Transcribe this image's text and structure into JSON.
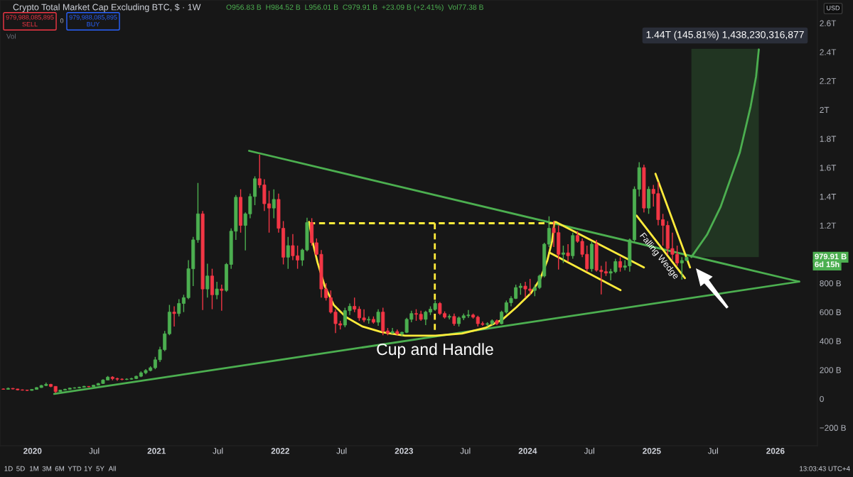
{
  "chart_data": {
    "type": "candlestick",
    "title": "Crypto Total Market Cap Excluding BTC, $ · 1W",
    "x": [
      "2019-10-07",
      "2019-10-21",
      "2019-11-04",
      "2019-11-18",
      "2019-12-02",
      "2019-12-16",
      "2019-12-30",
      "2020-01-13",
      "2020-01-27",
      "2020-02-10",
      "2020-02-24",
      "2020-03-09",
      "2020-03-23",
      "2020-04-06",
      "2020-04-20",
      "2020-05-04",
      "2020-05-18",
      "2020-06-01",
      "2020-06-15",
      "2020-06-29",
      "2020-07-13",
      "2020-07-27",
      "2020-08-10",
      "2020-08-24",
      "2020-09-07",
      "2020-09-21",
      "2020-10-05",
      "2020-10-19",
      "2020-11-02",
      "2020-11-16",
      "2020-11-30",
      "2020-12-14",
      "2020-12-28",
      "2021-01-11",
      "2021-01-25",
      "2021-02-08",
      "2021-02-22",
      "2021-03-08",
      "2021-03-22",
      "2021-04-05",
      "2021-04-19",
      "2021-05-03",
      "2021-05-17",
      "2021-05-31",
      "2021-06-14",
      "2021-06-28",
      "2021-07-12",
      "2021-07-26",
      "2021-08-09",
      "2021-08-23",
      "2021-09-06",
      "2021-09-20",
      "2021-10-04",
      "2021-10-18",
      "2021-11-01",
      "2021-11-15",
      "2021-11-29",
      "2021-12-13",
      "2021-12-27",
      "2022-01-10",
      "2022-01-24",
      "2022-02-07",
      "2022-02-21",
      "2022-03-07",
      "2022-03-21",
      "2022-04-04",
      "2022-04-18",
      "2022-05-02",
      "2022-05-16",
      "2022-05-30",
      "2022-06-13",
      "2022-06-27",
      "2022-07-11",
      "2022-07-25",
      "2022-08-08",
      "2022-08-22",
      "2022-09-05",
      "2022-09-19",
      "2022-10-03",
      "2022-10-17",
      "2022-10-31",
      "2022-11-14",
      "2022-11-28",
      "2022-12-12",
      "2022-12-26",
      "2023-01-09",
      "2023-01-23",
      "2023-02-06",
      "2023-02-20",
      "2023-03-06",
      "2023-03-20",
      "2023-04-03",
      "2023-04-17",
      "2023-05-01",
      "2023-05-15",
      "2023-05-29",
      "2023-06-12",
      "2023-06-26",
      "2023-07-10",
      "2023-07-24",
      "2023-08-07",
      "2023-08-21",
      "2023-09-04",
      "2023-09-18",
      "2023-10-02",
      "2023-10-16",
      "2023-10-30",
      "2023-11-13",
      "2023-11-27",
      "2023-12-11",
      "2023-12-25",
      "2024-01-08",
      "2024-01-22",
      "2024-02-05",
      "2024-02-19",
      "2024-03-04",
      "2024-03-18",
      "2024-04-01",
      "2024-04-15",
      "2024-04-29",
      "2024-05-13",
      "2024-05-27",
      "2024-06-10",
      "2024-06-24",
      "2024-07-08",
      "2024-07-22",
      "2024-08-05",
      "2024-08-19",
      "2024-09-02",
      "2024-09-16",
      "2024-09-30",
      "2024-10-14",
      "2024-10-28",
      "2024-11-11",
      "2024-11-25",
      "2024-12-09",
      "2024-12-23",
      "2025-01-06",
      "2025-01-20",
      "2025-02-03",
      "2025-02-17",
      "2025-03-03",
      "2025-03-17",
      "2025-03-31",
      "2025-04-14"
    ],
    "ohlc": [
      [
        68000000000.0,
        72000000000.0,
        64000000000.0,
        66000000000.0
      ],
      [
        66000000000.0,
        78000000000.0,
        64000000000.0,
        72000000000.0
      ],
      [
        72000000000.0,
        74000000000.0,
        66000000000.0,
        68000000000.0
      ],
      [
        68000000000.0,
        69000000000.0,
        58000000000.0,
        62000000000.0
      ],
      [
        62000000000.0,
        65000000000.0,
        57000000000.0,
        60000000000.0
      ],
      [
        60000000000.0,
        63000000000.0,
        55000000000.0,
        58000000000.0
      ],
      [
        58000000000.0,
        66000000000.0,
        57000000000.0,
        65000000000.0
      ],
      [
        65000000000.0,
        80000000000.0,
        64000000000.0,
        78000000000.0
      ],
      [
        78000000000.0,
        96000000000.0,
        76000000000.0,
        92000000000.0
      ],
      [
        92000000000.0,
        112000000000.0,
        88000000000.0,
        100000000000.0
      ],
      [
        100000000000.0,
        104000000000.0,
        80000000000.0,
        86000000000.0
      ],
      [
        86000000000.0,
        88000000000.0,
        40000000000.0,
        50000000000.0
      ],
      [
        50000000000.0,
        62000000000.0,
        48000000000.0,
        60000000000.0
      ],
      [
        60000000000.0,
        70000000000.0,
        58000000000.0,
        66000000000.0
      ],
      [
        66000000000.0,
        76000000000.0,
        64000000000.0,
        74000000000.0
      ],
      [
        74000000000.0,
        80000000000.0,
        70000000000.0,
        76000000000.0
      ],
      [
        76000000000.0,
        84000000000.0,
        72000000000.0,
        80000000000.0
      ],
      [
        80000000000.0,
        90000000000.0,
        78000000000.0,
        86000000000.0
      ],
      [
        86000000000.0,
        88000000000.0,
        80000000000.0,
        84000000000.0
      ],
      [
        84000000000.0,
        96000000000.0,
        82000000000.0,
        94000000000.0
      ],
      [
        94000000000.0,
        110000000000.0,
        92000000000.0,
        106000000000.0
      ],
      [
        106000000000.0,
        135000000000.0,
        104000000000.0,
        130000000000.0
      ],
      [
        130000000000.0,
        158000000000.0,
        128000000000.0,
        150000000000.0
      ],
      [
        150000000000.0,
        156000000000.0,
        128000000000.0,
        140000000000.0
      ],
      [
        140000000000.0,
        146000000000.0,
        124000000000.0,
        136000000000.0
      ],
      [
        136000000000.0,
        142000000000.0,
        128000000000.0,
        134000000000.0
      ],
      [
        134000000000.0,
        142000000000.0,
        130000000000.0,
        136000000000.0
      ],
      [
        136000000000.0,
        145000000000.0,
        132000000000.0,
        140000000000.0
      ],
      [
        140000000000.0,
        160000000000.0,
        136000000000.0,
        156000000000.0
      ],
      [
        156000000000.0,
        190000000000.0,
        150000000000.0,
        180000000000.0
      ],
      [
        180000000000.0,
        205000000000.0,
        170000000000.0,
        196000000000.0
      ],
      [
        196000000000.0,
        225000000000.0,
        190000000000.0,
        215000000000.0
      ],
      [
        215000000000.0,
        290000000000.0,
        205000000000.0,
        270000000000.0
      ],
      [
        270000000000.0,
        360000000000.0,
        255000000000.0,
        340000000000.0
      ],
      [
        340000000000.0,
        470000000000.0,
        330000000000.0,
        450000000000.0
      ],
      [
        450000000000.0,
        650000000000.0,
        440000000000.0,
        600000000000.0
      ],
      [
        600000000000.0,
        640000000000.0,
        500000000000.0,
        590000000000.0
      ],
      [
        590000000000.0,
        690000000000.0,
        570000000000.0,
        660000000000.0
      ],
      [
        660000000000.0,
        720000000000.0,
        600000000000.0,
        700000000000.0
      ],
      [
        700000000000.0,
        960000000000.0,
        690000000000.0,
        900000000000.0
      ],
      [
        900000000000.0,
        1120000000000.0,
        780000000000.0,
        1100000000000.0
      ],
      [
        1100000000000.0,
        1494000000000.0,
        1080000000000.0,
        1280000000000.0
      ],
      [
        1280000000000.0,
        1300000000000.0,
        614000000000.0,
        760000000000.0
      ],
      [
        760000000000.0,
        935000000000.0,
        700000000000.0,
        850000000000.0
      ],
      [
        850000000000.0,
        900000000000.0,
        620000000000.0,
        720000000000.0
      ],
      [
        720000000000.0,
        810000000000.0,
        690000000000.0,
        760000000000.0
      ],
      [
        760000000000.0,
        790000000000.0,
        609000000000.0,
        750000000000.0
      ],
      [
        750000000000.0,
        940000000000.0,
        740000000000.0,
        930000000000.0
      ],
      [
        930000000000.0,
        1180000000000.0,
        900000000000.0,
        1160000000000.0
      ],
      [
        1160000000000.0,
        1410000000000.0,
        1100000000000.0,
        1395000000000.0
      ],
      [
        1395000000000.0,
        1450000000000.0,
        1150000000000.0,
        1200000000000.0
      ],
      [
        1200000000000.0,
        1290000000000.0,
        1027000000000.0,
        1280000000000.0
      ],
      [
        1280000000000.0,
        1420000000000.0,
        1250000000000.0,
        1400000000000.0
      ],
      [
        1400000000000.0,
        1540000000000.0,
        1340000000000.0,
        1523000000000.0
      ],
      [
        1523000000000.0,
        1690000000000.0,
        1460000000000.0,
        1480000000000.0
      ],
      [
        1480000000000.0,
        1520000000000.0,
        1300000000000.0,
        1350000000000.0
      ],
      [
        1350000000000.0,
        1440000000000.0,
        1150000000000.0,
        1320000000000.0
      ],
      [
        1320000000000.0,
        1450000000000.0,
        1250000000000.0,
        1380000000000.0
      ],
      [
        1380000000000.0,
        1420000000000.0,
        1150000000000.0,
        1180000000000.0
      ],
      [
        1180000000000.0,
        1230000000000.0,
        930000000000.0,
        980000000000.0
      ],
      [
        980000000000.0,
        1120000000000.0,
        900000000000.0,
        1060000000000.0
      ],
      [
        1060000000000.0,
        1140000000000.0,
        960000000000.0,
        990000000000.0
      ],
      [
        990000000000.0,
        1060000000000.0,
        900000000000.0,
        960000000000.0
      ],
      [
        960000000000.0,
        1040000000000.0,
        920000000000.0,
        1030000000000.0
      ],
      [
        1030000000000.0,
        1253000000000.0,
        1020000000000.0,
        1220000000000.0
      ],
      [
        1220000000000.0,
        1250000000000.0,
        1060000000000.0,
        1080000000000.0
      ],
      [
        1080000000000.0,
        1110000000000.0,
        990000000000.0,
        1000000000000.0
      ],
      [
        1000000000000.0,
        1030000000000.0,
        700000000000.0,
        760000000000.0
      ],
      [
        760000000000.0,
        800000000000.0,
        680000000000.0,
        700000000000.0
      ],
      [
        700000000000.0,
        750000000000.0,
        590000000000.0,
        600000000000.0
      ],
      [
        600000000000.0,
        620000000000.0,
        455000000000.0,
        520000000000.0
      ],
      [
        520000000000.0,
        540000000000.0,
        480000000000.0,
        510000000000.0
      ],
      [
        510000000000.0,
        630000000000.0,
        495000000000.0,
        610000000000.0
      ],
      [
        610000000000.0,
        660000000000.0,
        580000000000.0,
        640000000000.0
      ],
      [
        640000000000.0,
        700000000000.0,
        600000000000.0,
        620000000000.0
      ],
      [
        620000000000.0,
        640000000000.0,
        540000000000.0,
        560000000000.0
      ],
      [
        560000000000.0,
        620000000000.0,
        530000000000.0,
        545000000000.0
      ],
      [
        545000000000.0,
        570000000000.0,
        520000000000.0,
        550000000000.0
      ],
      [
        550000000000.0,
        570000000000.0,
        520000000000.0,
        530000000000.0
      ],
      [
        530000000000.0,
        620000000000.0,
        505000000000.0,
        600000000000.0
      ],
      [
        600000000000.0,
        630000000000.0,
        440000000000.0,
        470000000000.0
      ],
      [
        470000000000.0,
        490000000000.0,
        440000000000.0,
        455000000000.0
      ],
      [
        455000000000.0,
        490000000000.0,
        450000000000.0,
        465000000000.0
      ],
      [
        465000000000.0,
        480000000000.0,
        440000000000.0,
        450000000000.0
      ],
      [
        450000000000.0,
        465000000000.0,
        435000000000.0,
        460000000000.0
      ],
      [
        460000000000.0,
        560000000000.0,
        455000000000.0,
        550000000000.0
      ],
      [
        550000000000.0,
        610000000000.0,
        530000000000.0,
        590000000000.0
      ],
      [
        590000000000.0,
        620000000000.0,
        540000000000.0,
        585000000000.0
      ],
      [
        585000000000.0,
        610000000000.0,
        540000000000.0,
        550000000000.0
      ],
      [
        550000000000.0,
        610000000000.0,
        510000000000.0,
        600000000000.0
      ],
      [
        600000000000.0,
        640000000000.0,
        580000000000.0,
        620000000000.0
      ],
      [
        620000000000.0,
        680000000000.0,
        610000000000.0,
        660000000000.0
      ],
      [
        660000000000.0,
        670000000000.0,
        580000000000.0,
        590000000000.0
      ],
      [
        590000000000.0,
        605000000000.0,
        555000000000.0,
        565000000000.0
      ],
      [
        565000000000.0,
        585000000000.0,
        550000000000.0,
        570000000000.0
      ],
      [
        570000000000.0,
        590000000000.0,
        505000000000.0,
        520000000000.0
      ],
      [
        520000000000.0,
        570000000000.0,
        500000000000.0,
        560000000000.0
      ],
      [
        560000000000.0,
        590000000000.0,
        545000000000.0,
        575000000000.0
      ],
      [
        575000000000.0,
        614000000000.0,
        560000000000.0,
        580000000000.0
      ],
      [
        580000000000.0,
        590000000000.0,
        555000000000.0,
        565000000000.0
      ],
      [
        565000000000.0,
        575000000000.0,
        500000000000.0,
        520000000000.0
      ],
      [
        520000000000.0,
        535000000000.0,
        505000000000.0,
        515000000000.0
      ],
      [
        515000000000.0,
        530000000000.0,
        500000000000.0,
        520000000000.0
      ],
      [
        520000000000.0,
        550000000000.0,
        510000000000.0,
        540000000000.0
      ],
      [
        540000000000.0,
        550000000000.0,
        510000000000.0,
        520000000000.0
      ],
      [
        520000000000.0,
        610000000000.0,
        515000000000.0,
        600000000000.0
      ],
      [
        600000000000.0,
        680000000000.0,
        590000000000.0,
        665000000000.0
      ],
      [
        665000000000.0,
        710000000000.0,
        640000000000.0,
        695000000000.0
      ],
      [
        695000000000.0,
        790000000000.0,
        690000000000.0,
        770000000000.0
      ],
      [
        770000000000.0,
        800000000000.0,
        720000000000.0,
        780000000000.0
      ],
      [
        780000000000.0,
        810000000000.0,
        700000000000.0,
        760000000000.0
      ],
      [
        760000000000.0,
        830000000000.0,
        720000000000.0,
        750000000000.0
      ],
      [
        750000000000.0,
        790000000000.0,
        710000000000.0,
        770000000000.0
      ],
      [
        770000000000.0,
        860000000000.0,
        760000000000.0,
        850000000000.0
      ],
      [
        850000000000.0,
        1080000000000.0,
        840000000000.0,
        1070000000000.0
      ],
      [
        1070000000000.0,
        1263000000000.0,
        1050000000000.0,
        1180000000000.0
      ],
      [
        1180000000000.0,
        1230000000000.0,
        1050000000000.0,
        1150000000000.0
      ],
      [
        1150000000000.0,
        1200000000000.0,
        894000000000.0,
        1000000000000.0
      ],
      [
        1000000000000.0,
        1060000000000.0,
        940000000000.0,
        1010000000000.0
      ],
      [
        1010000000000.0,
        1070000000000.0,
        950000000000.0,
        990000000000.0
      ],
      [
        990000000000.0,
        1150000000000.0,
        970000000000.0,
        1130000000000.0
      ],
      [
        1130000000000.0,
        1160000000000.0,
        1080000000000.0,
        1090000000000.0
      ],
      [
        1090000000000.0,
        1110000000000.0,
        980000000000.0,
        1000000000000.0
      ],
      [
        1000000000000.0,
        1060000000000.0,
        880000000000.0,
        900000000000.0
      ],
      [
        900000000000.0,
        1090000000000.0,
        880000000000.0,
        1070000000000.0
      ],
      [
        1070000000000.0,
        1100000000000.0,
        880000000000.0,
        890000000000.0
      ],
      [
        890000000000.0,
        920000000000.0,
        722000000000.0,
        880000000000.0
      ],
      [
        880000000000.0,
        950000000000.0,
        850000000000.0,
        870000000000.0
      ],
      [
        870000000000.0,
        900000000000.0,
        820000000000.0,
        880000000000.0
      ],
      [
        880000000000.0,
        970000000000.0,
        870000000000.0,
        950000000000.0
      ],
      [
        950000000000.0,
        980000000000.0,
        880000000000.0,
        910000000000.0
      ],
      [
        910000000000.0,
        960000000000.0,
        890000000000.0,
        920000000000.0
      ],
      [
        920000000000.0,
        1110000000000.0,
        880000000000.0,
        1100000000000.0
      ],
      [
        1100000000000.0,
        1470000000000.0,
        1080000000000.0,
        1450000000000.0
      ],
      [
        1450000000000.0,
        1637000000000.0,
        1400000000000.0,
        1600000000000.0
      ],
      [
        1600000000000.0,
        1620000000000.0,
        1290000000000.0,
        1320000000000.0
      ],
      [
        1320000000000.0,
        1470000000000.0,
        1280000000000.0,
        1450000000000.0
      ],
      [
        1450000000000.0,
        1480000000000.0,
        1330000000000.0,
        1420000000000.0
      ],
      [
        1420000000000.0,
        1500000000000.0,
        1200000000000.0,
        1240000000000.0
      ],
      [
        1240000000000.0,
        1280000000000.0,
        1060000000000.0,
        1200000000000.0
      ],
      [
        1200000000000.0,
        1230000000000.0,
        1000000000000.0,
        1040000000000.0
      ],
      [
        1040000000000.0,
        1150000000000.0,
        960000000000.0,
        1000000000000.0
      ],
      [
        1000000000000.0,
        1060000000000.0,
        920000000000.0,
        940000000000.0
      ],
      [
        940000000000.0,
        980000000000.0,
        825000000000.0,
        957000000000.0
      ],
      [
        956830000000.0,
        984520000000.0,
        956010000000.0,
        979910000000.0
      ]
    ],
    "colors": [
      "#f23645",
      "#4caf50",
      "#f23645",
      "#f23645",
      "#f23645",
      "#f23645",
      "#4caf50",
      "#4caf50",
      "#4caf50",
      "#4caf50",
      "#f23645",
      "#f23645",
      "#4caf50",
      "#4caf50",
      "#4caf50",
      "#4caf50",
      "#4caf50",
      "#4caf50",
      "#f23645",
      "#4caf50",
      "#4caf50",
      "#4caf50",
      "#4caf50",
      "#f23645",
      "#f23645",
      "#f23645",
      "#4caf50",
      "#4caf50",
      "#4caf50",
      "#4caf50",
      "#4caf50",
      "#4caf50",
      "#4caf50",
      "#4caf50",
      "#4caf50",
      "#4caf50",
      "#f23645",
      "#4caf50",
      "#4caf50",
      "#4caf50",
      "#4caf50",
      "#4caf50",
      "#f23645",
      "#4caf50",
      "#f23645",
      "#4caf50",
      "#f23645",
      "#4caf50",
      "#4caf50",
      "#4caf50",
      "#f23645",
      "#4caf50",
      "#4caf50",
      "#4caf50",
      "#f23645",
      "#f23645",
      "#f23645",
      "#4caf50",
      "#f23645",
      "#f23645",
      "#4caf50",
      "#f23645",
      "#f23645",
      "#4caf50",
      "#4caf50",
      "#f23645",
      "#f23645",
      "#f23645",
      "#f23645",
      "#f23645",
      "#f23645",
      "#f23645",
      "#4caf50",
      "#4caf50",
      "#f23645",
      "#f23645",
      "#f23645",
      "#4caf50",
      "#f23645",
      "#4caf50",
      "#f23645",
      "#f23645",
      "#4caf50",
      "#f23645",
      "#4caf50",
      "#4caf50",
      "#4caf50",
      "#f23645",
      "#f23645",
      "#4caf50",
      "#4caf50",
      "#4caf50",
      "#f23645",
      "#f23645",
      "#4caf50",
      "#f23645",
      "#4caf50",
      "#4caf50",
      "#4caf50",
      "#f23645",
      "#f23645",
      "#f23645",
      "#4caf50",
      "#4caf50",
      "#f23645",
      "#4caf50",
      "#4caf50",
      "#4caf50",
      "#4caf50",
      "#4caf50",
      "#f23645",
      "#f23645",
      "#4caf50",
      "#4caf50",
      "#4caf50",
      "#4caf50",
      "#f23645",
      "#f23645",
      "#4caf50",
      "#f23645",
      "#4caf50",
      "#f23645",
      "#f23645",
      "#f23645",
      "#4caf50",
      "#f23645",
      "#f23645",
      "#f23645",
      "#4caf50",
      "#4caf50",
      "#f23645",
      "#4caf50",
      "#4caf50",
      "#4caf50",
      "#4caf50",
      "#f23645",
      "#4caf50",
      "#f23645",
      "#f23645",
      "#f23645",
      "#f23645",
      "#f23645",
      "#f23645",
      "#4caf50",
      "#4caf50"
    ],
    "series": [
      {
        "type": "line",
        "x": [
          "2020-03-05",
          "2026-03-12"
        ],
        "values": [
          34000000000.0,
          811000000000.0
        ],
        "color": "#4caf50"
      },
      {
        "type": "line",
        "x": [
          "2021-10-01",
          "2026-03-12"
        ],
        "values": [
          1716000000000.0,
          811000000000.0
        ],
        "color": "#4caf50"
      },
      {
        "type": "line",
        "x": [
          "2022-03-27",
          "2022-04-06",
          "2022-04-21",
          "2022-05-12",
          "2022-06-08",
          "2022-07-14",
          "2022-08-31",
          "2022-10-27",
          "2023-01-04",
          "2023-04-04",
          "2023-06-21",
          "2023-08-29",
          "2023-10-19",
          "2023-11-29",
          "2024-01-11",
          "2024-02-07",
          "2024-02-28",
          "2024-03-13",
          "2024-03-20"
        ],
        "values": [
          1224000000000.0,
          1091000000000.0,
          943000000000.0,
          781000000000.0,
          649000000000.0,
          565000000000.0,
          501000000000.0,
          462000000000.0,
          437000000000.0,
          437000000000.0,
          452000000000.0,
          491000000000.0,
          550000000000.0,
          634000000000.0,
          732000000000.0,
          830000000000.0,
          958000000000.0,
          1091000000000.0,
          1224000000000.0
        ],
        "color": "#ffeb3b"
      },
      {
        "type": "line",
        "x": [
          "2022-03-27",
          "2024-03-20"
        ],
        "values": [
          1215000000000.0,
          1215000000000.0
        ],
        "color": "#ffeb3b",
        "line_style": "dashed"
      },
      {
        "type": "line",
        "x": [
          "2023-04-02",
          "2023-04-02"
        ],
        "values": [
          1215000000000.0,
          477000000000.0
        ],
        "color": "#ffeb3b",
        "line_style": "dashed"
      },
      {
        "type": "line",
        "x": [
          "2024-03-24",
          "2024-12-09"
        ],
        "values": [
          1224000000000.0,
          909000000000.0
        ],
        "color": "#ffeb3b"
      },
      {
        "type": "line",
        "x": [
          "2024-03-05",
          "2024-10-01"
        ],
        "values": [
          1012000000000.0,
          752000000000.0
        ],
        "color": "#ffeb3b"
      },
      {
        "type": "line",
        "x": [
          "2024-11-17",
          "2025-04-09"
        ],
        "values": [
          1268000000000.0,
          835000000000.0
        ],
        "color": "#ffeb3b"
      },
      {
        "type": "line",
        "x": [
          "2025-01-12",
          "2025-04-24"
        ],
        "values": [
          1558000000000.0,
          909000000000.0
        ],
        "color": "#ffeb3b"
      },
      {
        "type": "line",
        "x": [
          "2025-04-28",
          "2025-06-13",
          "2025-07-23",
          "2025-09-18",
          "2025-10-20",
          "2025-11-05",
          "2025-11-13"
        ],
        "values": [
          981000000000.0,
          1135000000000.0,
          1327000000000.0,
          1705000000000.0,
          2025000000000.0,
          2232000000000.0,
          2418000000000.0
        ],
        "lower": [
          981000000000.0,
          981000000000.0,
          981000000000.0,
          981000000000.0,
          981000000000.0,
          981000000000.0,
          981000000000.0
        ],
        "upper": [
          2422000000000.0,
          2422000000000.0,
          2422000000000.0,
          2422000000000.0,
          2422000000000.0,
          2422000000000.0,
          2422000000000.0
        ],
        "color": "#4caf50"
      }
    ],
    "xlim": [
      "2019-09-27",
      "2026-05-05"
    ],
    "xticks": [
      {
        "value": "2020-01-01",
        "label": "2020"
      },
      {
        "value": "2020-07-01",
        "label": "Jul"
      },
      {
        "value": "2021-01-01",
        "label": "2021"
      },
      {
        "value": "2021-07-01",
        "label": "Jul"
      },
      {
        "value": "2022-01-01",
        "label": "2022"
      },
      {
        "value": "2022-07-01",
        "label": "Jul"
      },
      {
        "value": "2023-01-01",
        "label": "2023"
      },
      {
        "value": "2023-07-01",
        "label": "Jul"
      },
      {
        "value": "2024-01-01",
        "label": "2024"
      },
      {
        "value": "2024-07-01",
        "label": "Jul"
      },
      {
        "value": "2025-01-01",
        "label": "2025"
      },
      {
        "value": "2025-07-01",
        "label": "Jul"
      },
      {
        "value": "2026-01-01",
        "label": "2026"
      }
    ],
    "ylim": [
      -325000000000.0,
      2760000000000.0
    ],
    "yticks": [
      {
        "value": 2600000000000.0,
        "label": "2.6T"
      },
      {
        "value": 2400000000000.0,
        "label": "2.4T"
      },
      {
        "value": 2200000000000.0,
        "label": "2.2T"
      },
      {
        "value": 2000000000000.0,
        "label": "2T"
      },
      {
        "value": 1800000000000.0,
        "label": "1.8T"
      },
      {
        "value": 1600000000000.0,
        "label": "1.6T"
      },
      {
        "value": 1400000000000.0,
        "label": "1.4T"
      },
      {
        "value": 1200000000000.0,
        "label": "1.2T"
      },
      {
        "value": 800000000000.0,
        "label": "800 B"
      },
      {
        "value": 600000000000.0,
        "label": "600 B"
      },
      {
        "value": 400000000000.0,
        "label": "400 B"
      },
      {
        "value": 200000000000.0,
        "label": "200 B"
      },
      0,
      {
        "value": -200000000000.0,
        "label": "−200 B"
      }
    ],
    "annotations": [
      "O956.83 B  H984.52 B  L956.01 B  C979.91 B  +23.09 B (+2.41%)  Vol77.38 B",
      "979,988,085,895\nSELL",
      "0",
      "979,988,085,895\nBUY",
      "Vol",
      "USD",
      "1.44T (145.81%) 1,438,230,316,877",
      "Cup and Handle",
      "Falling Wedge",
      "979.91 B",
      "6d 15h",
      "1D",
      "5D",
      "1M",
      "3M",
      "6M",
      "YTD",
      "1Y",
      "5Y",
      "All",
      "13:03:43 UTC+4"
    ]
  }
}
